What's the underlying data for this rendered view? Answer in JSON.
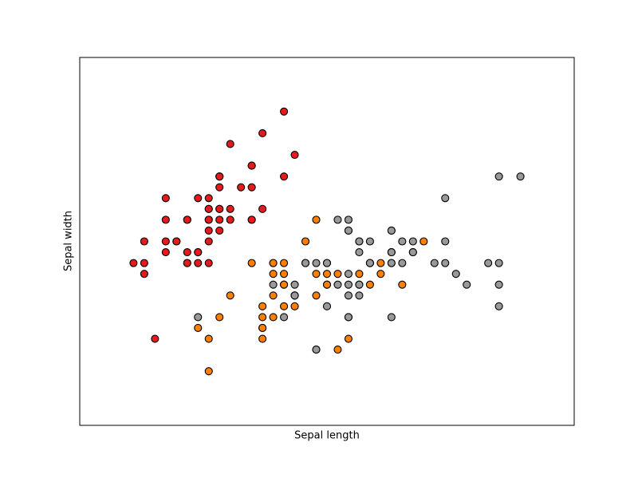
{
  "chart_data": {
    "type": "scatter",
    "xlabel": "Sepal length",
    "ylabel": "Sepal width",
    "xlim": [
      3.8,
      8.4
    ],
    "ylim": [
      1.5,
      4.9
    ],
    "edgecolor": "#000000",
    "series": [
      {
        "color": "#e41a1c",
        "x": [
          5.1,
          4.9,
          4.7,
          4.6,
          5.0,
          5.4,
          4.6,
          5.0,
          4.4,
          4.9,
          5.4,
          4.8,
          4.8,
          4.3,
          5.8,
          5.7,
          5.4,
          5.1,
          5.7,
          5.1,
          5.4,
          5.1,
          4.6,
          5.1,
          4.8,
          5.0,
          5.0,
          5.2,
          5.2,
          4.7,
          4.8,
          5.4,
          5.2,
          5.5,
          4.9,
          5.0,
          5.5,
          4.9,
          4.4,
          5.1,
          5.0,
          4.5,
          4.4,
          5.0,
          5.1,
          4.8,
          5.1,
          4.6,
          5.3,
          5.0
        ],
        "values": [
          3.5,
          3.0,
          3.2,
          3.1,
          3.6,
          3.9,
          3.4,
          3.4,
          2.9,
          3.1,
          3.7,
          3.4,
          3.0,
          3.0,
          4.0,
          4.4,
          3.9,
          3.5,
          3.8,
          3.8,
          3.4,
          3.7,
          3.6,
          3.3,
          3.4,
          3.0,
          3.4,
          3.5,
          3.4,
          3.2,
          3.1,
          3.4,
          4.1,
          4.2,
          3.1,
          3.2,
          3.5,
          3.6,
          3.0,
          3.4,
          3.5,
          2.3,
          3.2,
          3.5,
          3.8,
          3.0,
          3.8,
          3.2,
          3.7,
          3.3
        ]
      },
      {
        "color": "#ff7f00",
        "x": [
          7.0,
          6.4,
          6.9,
          5.5,
          6.5,
          5.7,
          6.3,
          4.9,
          6.6,
          5.2,
          5.0,
          5.9,
          6.0,
          6.1,
          5.6,
          6.7,
          5.6,
          5.8,
          6.2,
          5.6,
          5.9,
          6.1,
          6.3,
          6.1,
          6.4,
          6.6,
          6.8,
          6.7,
          6.0,
          5.7,
          5.5,
          5.5,
          5.8,
          6.0,
          5.4,
          6.0,
          6.7,
          6.3,
          5.6,
          5.5,
          5.5,
          6.1,
          5.8,
          5.0,
          5.6,
          5.7,
          5.7,
          6.2,
          5.1,
          5.7
        ],
        "values": [
          3.2,
          3.2,
          3.1,
          2.3,
          2.8,
          2.8,
          3.3,
          2.4,
          2.9,
          2.7,
          2.0,
          3.0,
          2.2,
          2.9,
          2.9,
          3.1,
          3.0,
          2.7,
          2.2,
          2.5,
          3.2,
          2.8,
          2.5,
          2.8,
          2.9,
          3.0,
          2.8,
          3.0,
          2.9,
          2.6,
          2.4,
          2.4,
          2.7,
          2.7,
          3.0,
          3.4,
          3.1,
          2.3,
          3.0,
          2.5,
          2.6,
          3.0,
          2.6,
          2.3,
          2.7,
          3.0,
          2.9,
          2.9,
          2.5,
          2.8
        ]
      },
      {
        "color": "#999999",
        "x": [
          6.3,
          5.8,
          7.1,
          6.3,
          6.5,
          7.6,
          4.9,
          7.3,
          6.7,
          7.2,
          6.5,
          6.4,
          6.8,
          5.7,
          5.8,
          6.4,
          6.5,
          7.7,
          7.7,
          6.0,
          6.9,
          5.6,
          7.7,
          6.3,
          6.7,
          7.2,
          6.2,
          6.1,
          6.4,
          7.2,
          7.4,
          7.9,
          6.4,
          6.3,
          6.1,
          7.7,
          6.3,
          6.4,
          6.0,
          6.9,
          6.7,
          6.9,
          5.8,
          6.8,
          6.7,
          6.7,
          6.3,
          6.5,
          6.2,
          5.9
        ],
        "values": [
          3.3,
          2.7,
          3.0,
          2.9,
          3.0,
          3.0,
          2.5,
          2.9,
          2.5,
          3.6,
          3.2,
          2.7,
          3.0,
          2.5,
          2.8,
          3.2,
          3.0,
          3.8,
          2.6,
          2.2,
          3.2,
          2.8,
          2.8,
          2.7,
          3.3,
          3.2,
          2.8,
          3.0,
          2.8,
          3.0,
          2.8,
          3.8,
          2.8,
          2.8,
          2.6,
          3.0,
          3.4,
          3.1,
          3.0,
          3.1,
          3.1,
          3.1,
          2.7,
          3.2,
          3.3,
          3.0,
          2.5,
          3.0,
          3.4,
          3.0
        ]
      }
    ]
  }
}
